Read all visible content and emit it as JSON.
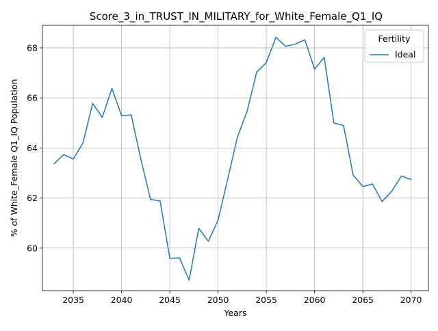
{
  "chart_data": {
    "type": "line",
    "title": "Score_3_in_TRUST_IN_MILITARY_for_White_Female_Q1_IQ",
    "xlabel": "Years",
    "ylabel": "% of White_Female Q1_IQ Population",
    "xlim": [
      2031.8,
      2071.8
    ],
    "ylim": [
      58.3,
      68.9
    ],
    "xticks": [
      2035,
      2040,
      2045,
      2050,
      2055,
      2060,
      2065,
      2070
    ],
    "yticks": [
      60,
      62,
      64,
      66,
      68
    ],
    "grid": true,
    "legend": {
      "title": "Fertility",
      "position": "top-right"
    },
    "series": [
      {
        "name": "Ideal",
        "color": "#1f77b4",
        "x": [
          2033,
          2034,
          2035,
          2036,
          2037,
          2038,
          2039,
          2040,
          2041,
          2042,
          2043,
          2044,
          2045,
          2046,
          2047,
          2048,
          2049,
          2050,
          2051,
          2052,
          2053,
          2054,
          2055,
          2056,
          2057,
          2058,
          2059,
          2060,
          2061,
          2062,
          2063,
          2064,
          2065,
          2066,
          2067,
          2068,
          2069,
          2070
        ],
        "y": [
          63.37,
          63.73,
          63.56,
          64.2,
          65.78,
          65.22,
          66.38,
          65.29,
          65.32,
          63.55,
          61.95,
          61.88,
          59.59,
          59.61,
          58.72,
          60.79,
          60.27,
          61.12,
          62.76,
          64.43,
          65.45,
          67.03,
          67.41,
          68.42,
          68.06,
          68.15,
          68.32,
          67.15,
          67.62,
          65.0,
          64.9,
          62.92,
          62.46,
          62.56,
          61.86,
          62.27,
          62.88,
          62.74
        ]
      }
    ]
  }
}
